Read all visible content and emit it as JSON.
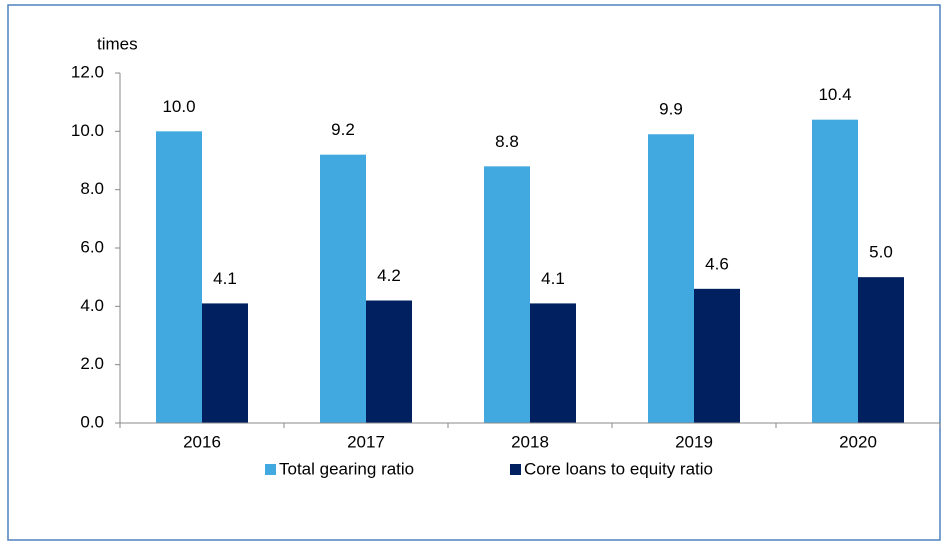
{
  "chart_data": {
    "type": "bar",
    "y_label": "times",
    "categories": [
      "2016",
      "2017",
      "2018",
      "2019",
      "2020"
    ],
    "series": [
      {
        "name": "Total gearing ratio",
        "color": "#41a8e0",
        "values": [
          10,
          9.2,
          8.8,
          9.9,
          10.4
        ],
        "value_labels": [
          "10.0",
          "9.2",
          "8.8",
          "9.9",
          "10.4"
        ]
      },
      {
        "name": "Core loans to equity ratio",
        "color": "#002060",
        "values": [
          4.1,
          4.2,
          4.1,
          4.6,
          5
        ],
        "value_labels": [
          "4.1",
          "4.2",
          "4.1",
          "4.6",
          "5.0"
        ]
      }
    ],
    "ylim": [
      0,
      12
    ],
    "yticks": [
      {
        "value": 0,
        "label": "0.0"
      },
      {
        "value": 2,
        "label": "2.0"
      },
      {
        "value": 4,
        "label": "4.0"
      },
      {
        "value": 6,
        "label": "6.0"
      },
      {
        "value": 8,
        "label": "8.0"
      },
      {
        "value": 10,
        "label": "10.0"
      },
      {
        "value": 12,
        "label": "12.0"
      }
    ],
    "grid": false,
    "legend": "bottom"
  }
}
